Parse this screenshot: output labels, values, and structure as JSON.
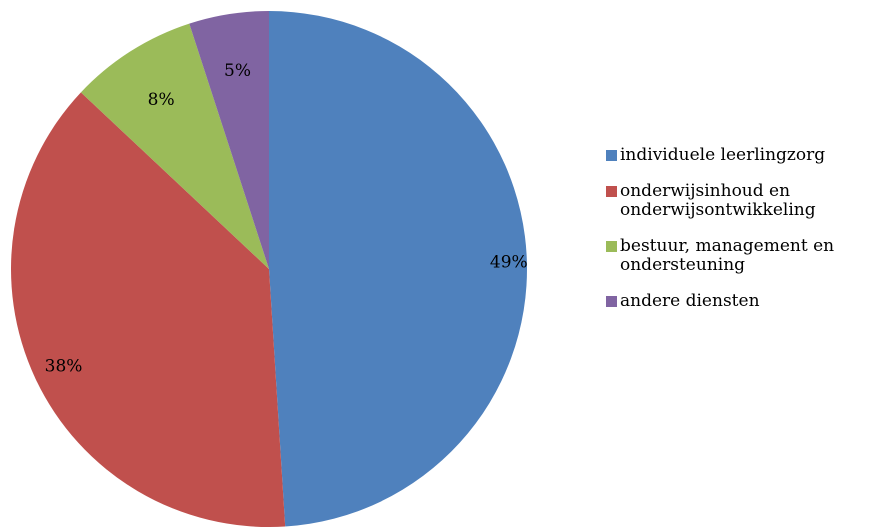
{
  "chart_data": {
    "type": "pie",
    "categories": [
      "individuele leerlingzorg",
      "onderwijsinhoud en onderwijsontwikkeling",
      "bestuur, management en ondersteuning",
      "andere diensten"
    ],
    "values": [
      49,
      38,
      8,
      5
    ],
    "labels": [
      "49%",
      "38%",
      "8%",
      "5%"
    ],
    "colors": [
      "#4F81BD",
      "#C0504D",
      "#9BBB59",
      "#8064A2"
    ],
    "legend_position": "right",
    "start_angle": "12 o'clock",
    "direction": "clockwise"
  }
}
